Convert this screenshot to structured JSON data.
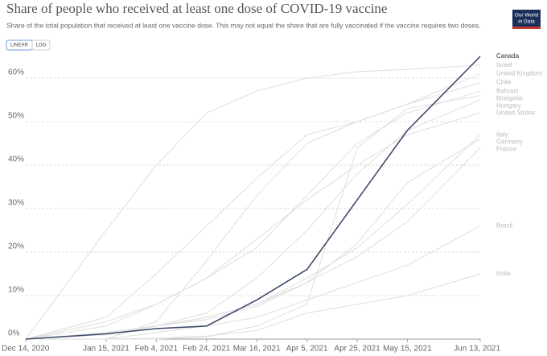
{
  "chart_data": {
    "type": "line",
    "title": "Share of people who received at least one dose of COVID-19 vaccine",
    "subtitle": "Share of the total population that received at least one vaccine dose. This may not equal the share that are fully vaccinated if the vaccine requires two doses.",
    "scale_buttons": [
      "LINEAR",
      "LOG"
    ],
    "logo": [
      "Our World",
      "in Data"
    ],
    "x": [
      "Dec 14, 2020",
      "Jan 15, 2021",
      "Feb 4, 2021",
      "Feb 24, 2021",
      "Mar 16, 2021",
      "Apr 5, 2021",
      "Apr 25, 2021",
      "May 15, 2021",
      "Jun 13, 2021"
    ],
    "xlim": [
      "Dec 14, 2020",
      "Jun 13, 2021"
    ],
    "xticks": [
      "Dec 14, 2020",
      "Jan 15, 2021",
      "Feb 4, 2021",
      "Feb 24, 2021",
      "Mar 16, 2021",
      "Apr 5, 2021",
      "Apr 25, 2021",
      "May 15, 2021",
      "Jun 13, 2021"
    ],
    "ylim": [
      0,
      65
    ],
    "yticks": [
      {
        "value": 0,
        "label": "0%"
      },
      {
        "value": 10,
        "label": "10%"
      },
      {
        "value": 20,
        "label": "20%"
      },
      {
        "value": 30,
        "label": "30%"
      },
      {
        "value": 40,
        "label": "40%"
      },
      {
        "value": 50,
        "label": "50%"
      },
      {
        "value": 60,
        "label": "60%"
      }
    ],
    "grid": true,
    "series": [
      {
        "name": "Israel",
        "color": "#dedede",
        "values": [
          0,
          25,
          40,
          52,
          57,
          60,
          61.5,
          62,
          63
        ]
      },
      {
        "name": "United Kingdom",
        "color": "#dedede",
        "values": [
          0,
          5,
          15,
          26,
          37,
          47,
          50,
          54,
          61
        ]
      },
      {
        "name": "Chile",
        "color": "#dedede",
        "values": [
          0,
          0,
          4,
          18,
          33,
          45,
          50,
          54,
          59
        ]
      },
      {
        "name": "Bahrain",
        "color": "#dedede",
        "values": [
          0,
          4,
          8,
          14,
          21,
          33,
          45,
          52,
          57
        ]
      },
      {
        "name": "Mongolia",
        "color": "#dedede",
        "values": [
          0,
          0,
          0,
          0.5,
          3,
          8,
          44,
          53,
          56
        ]
      },
      {
        "name": "Hungary",
        "color": "#dedede",
        "values": [
          0,
          1,
          3,
          6,
          14,
          25,
          38,
          48,
          55
        ]
      },
      {
        "name": "United States",
        "color": "#dedede",
        "values": [
          0,
          3,
          8,
          14,
          23,
          32,
          40,
          47,
          52
        ]
      },
      {
        "name": "Italy",
        "color": "#dedede",
        "values": [
          0,
          1.5,
          3,
          5,
          8,
          14,
          21,
          31,
          47
        ]
      },
      {
        "name": "Germany",
        "color": "#dedede",
        "values": [
          0,
          1.4,
          3,
          5,
          8,
          13,
          22,
          36,
          46
        ]
      },
      {
        "name": "France",
        "color": "#dedede",
        "values": [
          0,
          1,
          3,
          4.5,
          7.5,
          13,
          19,
          27,
          44
        ]
      },
      {
        "name": "Brazil",
        "color": "#dedede",
        "values": [
          0,
          0,
          1.5,
          3,
          5,
          9,
          13,
          17,
          26
        ]
      },
      {
        "name": "India",
        "color": "#dedede",
        "values": [
          0,
          0,
          0.2,
          0.7,
          2,
          6,
          8,
          10,
          15
        ]
      },
      {
        "name": "Canada",
        "color": "#3d4a6b",
        "values": [
          0,
          1.2,
          2.4,
          3,
          9,
          16,
          32,
          48,
          65
        ]
      }
    ]
  }
}
